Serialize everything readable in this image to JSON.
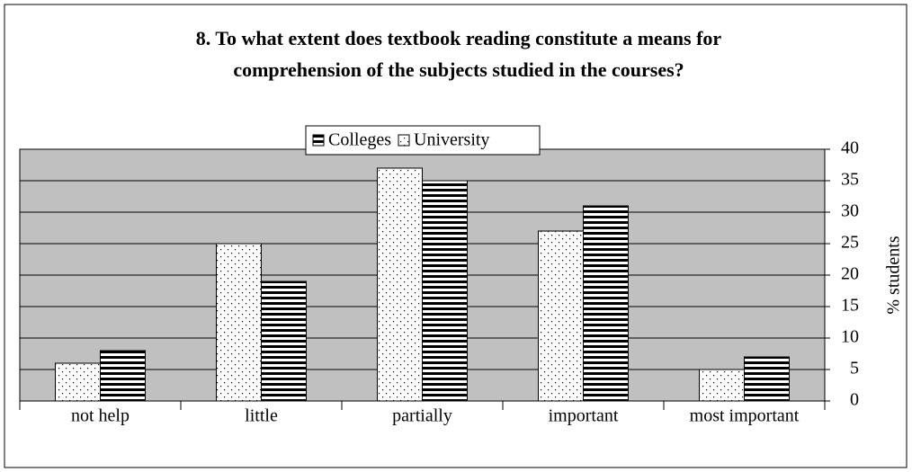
{
  "chart_data": {
    "type": "bar",
    "title": [
      "8. To what extent does textbook reading constitute a means for",
      "comprehension of the subjects studied in the courses?"
    ],
    "categories": [
      "not help",
      "little",
      "partially",
      "important",
      "most important"
    ],
    "series": [
      {
        "name": "Colleges",
        "color": "#000000",
        "pattern": "horizontal-stripes",
        "values": [
          8,
          19,
          35,
          31,
          7
        ]
      },
      {
        "name": "University",
        "color": "#000000",
        "pattern": "dots",
        "values": [
          6,
          25,
          37,
          27,
          5
        ]
      }
    ],
    "ylabel": "% students",
    "ylim": [
      0,
      40
    ],
    "yticks": [
      0,
      5,
      10,
      15,
      20,
      25,
      30,
      35,
      40
    ],
    "grid": true,
    "legend": "top",
    "y_axis_side": "right",
    "plot_background": "#c0c0c0"
  }
}
